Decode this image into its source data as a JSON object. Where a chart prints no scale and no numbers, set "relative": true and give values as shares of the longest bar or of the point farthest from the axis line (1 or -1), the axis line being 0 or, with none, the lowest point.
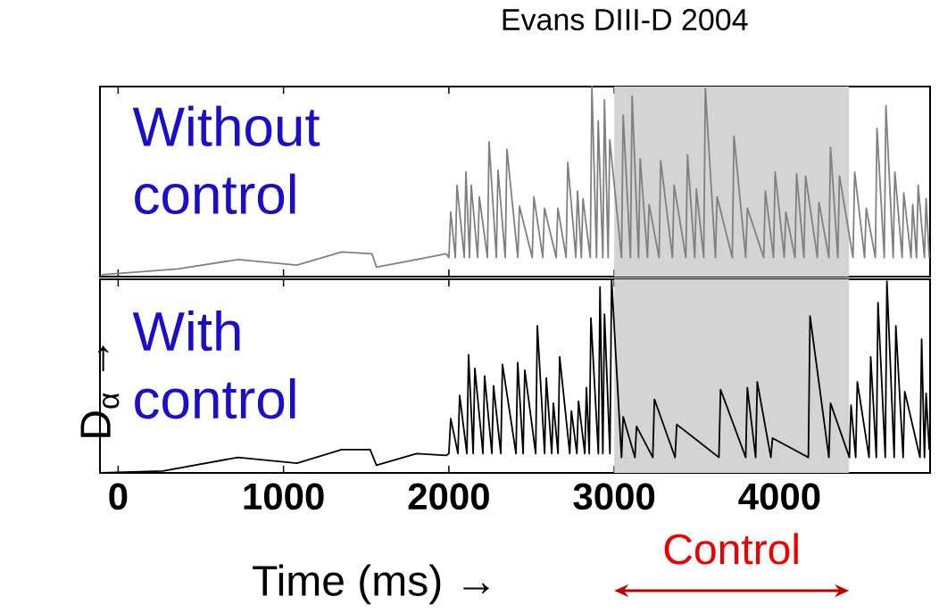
{
  "chart_data": [
    {
      "type": "line",
      "title": "Evans DIII-D 2004",
      "relative": true,
      "xlim": [
        -110,
        4910
      ],
      "xticks": [
        0,
        1000,
        2000,
        3000,
        4000
      ],
      "tick_labels": false,
      "annotations": [
        "Without control"
      ],
      "bands": [
        {
          "axis": "x",
          "from": 3000,
          "to": 4420,
          "color": "#d4d4d4"
        }
      ],
      "series": [
        {
          "color": "#808080",
          "x": [
            -100,
            362,
            724,
            1081,
            1351,
            1535,
            1562,
            1805,
            1984,
            2000,
            2011,
            2039,
            2049,
            2093,
            2103,
            2125,
            2135,
            2174,
            2184,
            2233,
            2243,
            2287,
            2297,
            2341,
            2351,
            2417,
            2427,
            2504,
            2514,
            2568,
            2578,
            2649,
            2659,
            2709,
            2719,
            2768,
            2778,
            2801,
            2811,
            2855,
            2865,
            2893,
            2903,
            2931,
            2941,
            2963,
            2973,
            3044,
            3054,
            3098,
            3108,
            3147,
            3157,
            3201,
            3211,
            3271,
            3281,
            3352,
            3362,
            3433,
            3443,
            3487,
            3497,
            3541,
            3551,
            3612,
            3622,
            3714,
            3724,
            3795,
            3805,
            3904,
            3914,
            3963,
            3973,
            4028,
            4038,
            4093,
            4103,
            4147,
            4157,
            4228,
            4238,
            4298,
            4308,
            4352,
            4362,
            4444,
            4454,
            4514,
            4524,
            4579,
            4589,
            4633,
            4643,
            4687,
            4697,
            4741,
            4751,
            4795,
            4805,
            4828,
            4838,
            4876,
            4886,
            4905
          ],
          "values": [
            0.01,
            0.04,
            0.09,
            0.06,
            0.13,
            0.12,
            0.05,
            0.09,
            0.12,
            0.1,
            0.34,
            0.1,
            0.48,
            0.1,
            0.55,
            0.1,
            0.48,
            0.1,
            0.42,
            0.1,
            0.71,
            0.1,
            0.56,
            0.1,
            0.67,
            0.1,
            0.37,
            0.1,
            0.42,
            0.1,
            0.36,
            0.1,
            0.36,
            0.1,
            0.6,
            0.1,
            0.45,
            0.1,
            0.41,
            0.1,
            1.0,
            0.1,
            0.82,
            0.1,
            0.93,
            0.1,
            0.72,
            0.1,
            0.85,
            0.1,
            0.95,
            0.1,
            0.62,
            0.1,
            0.38,
            0.1,
            0.61,
            0.1,
            0.48,
            0.1,
            0.64,
            0.1,
            0.46,
            0.1,
            0.99,
            0.1,
            0.42,
            0.1,
            0.74,
            0.1,
            0.36,
            0.1,
            0.45,
            0.1,
            0.55,
            0.1,
            0.34,
            0.1,
            0.54,
            0.1,
            0.53,
            0.1,
            0.39,
            0.1,
            0.68,
            0.1,
            0.53,
            0.1,
            0.55,
            0.1,
            0.36,
            0.1,
            0.78,
            0.1,
            0.9,
            0.1,
            0.55,
            0.1,
            0.44,
            0.1,
            0.38,
            0.1,
            0.48,
            0.1,
            0.41,
            0.1
          ]
        }
      ]
    },
    {
      "type": "line",
      "xlabel": "Time (ms) →",
      "ylabel": "D$_{α}$ →",
      "relative": true,
      "xlim": [
        -110,
        4910
      ],
      "xticks": [
        0,
        1000,
        2000,
        3000,
        4000
      ],
      "tick_labels": "x",
      "annotations": [
        "With control"
      ],
      "bands": [
        {
          "axis": "x",
          "from": 3000,
          "to": 4420,
          "color": "#d4d4d4",
          "label": "Control"
        }
      ],
      "series": [
        {
          "color": "#000000",
          "x": [
            -100,
            270,
            724,
            1081,
            1351,
            1524,
            1562,
            1805,
            1984,
            2000,
            2011,
            2055,
            2065,
            2109,
            2119,
            2147,
            2157,
            2206,
            2216,
            2260,
            2270,
            2314,
            2324,
            2406,
            2416,
            2449,
            2459,
            2525,
            2535,
            2579,
            2589,
            2622,
            2632,
            2660,
            2670,
            2731,
            2741,
            2774,
            2784,
            2822,
            2832,
            2849,
            2859,
            2904,
            2914,
            2931,
            2941,
            2974,
            2984,
            3044,
            3054,
            3125,
            3135,
            3233,
            3243,
            3368,
            3378,
            3633,
            3643,
            3795,
            3805,
            3855,
            3865,
            3947,
            3957,
            4174,
            4184,
            4298,
            4308,
            4422,
            4432,
            4460,
            4470,
            4541,
            4551,
            4585,
            4595,
            4639,
            4649,
            4693,
            4703,
            4747,
            4757,
            4849,
            4859,
            4876,
            4886,
            4905
          ],
          "values": [
            0,
            0.01,
            0.08,
            0.05,
            0.12,
            0.12,
            0.04,
            0.1,
            0.09,
            0.1,
            0.28,
            0.1,
            0.4,
            0.1,
            0.61,
            0.1,
            0.54,
            0.1,
            0.5,
            0.1,
            0.45,
            0.1,
            0.56,
            0.1,
            0.57,
            0.1,
            0.53,
            0.1,
            0.76,
            0.1,
            0.49,
            0.1,
            0.36,
            0.1,
            0.6,
            0.1,
            0.32,
            0.1,
            0.37,
            0.1,
            0.44,
            0.1,
            0.8,
            0.1,
            0.96,
            0.1,
            0.82,
            0.1,
            1.0,
            0.08,
            0.29,
            0.08,
            0.24,
            0.08,
            0.38,
            0.08,
            0.25,
            0.08,
            0.43,
            0.08,
            0.44,
            0.08,
            0.47,
            0.08,
            0.18,
            0.08,
            0.81,
            0.08,
            0.36,
            0.08,
            0.35,
            0.08,
            0.47,
            0.08,
            0.6,
            0.08,
            0.88,
            0.08,
            0.99,
            0.08,
            0.76,
            0.08,
            0.42,
            0.08,
            0.69,
            0.08,
            0.41,
            0.12
          ]
        }
      ]
    }
  ]
}
